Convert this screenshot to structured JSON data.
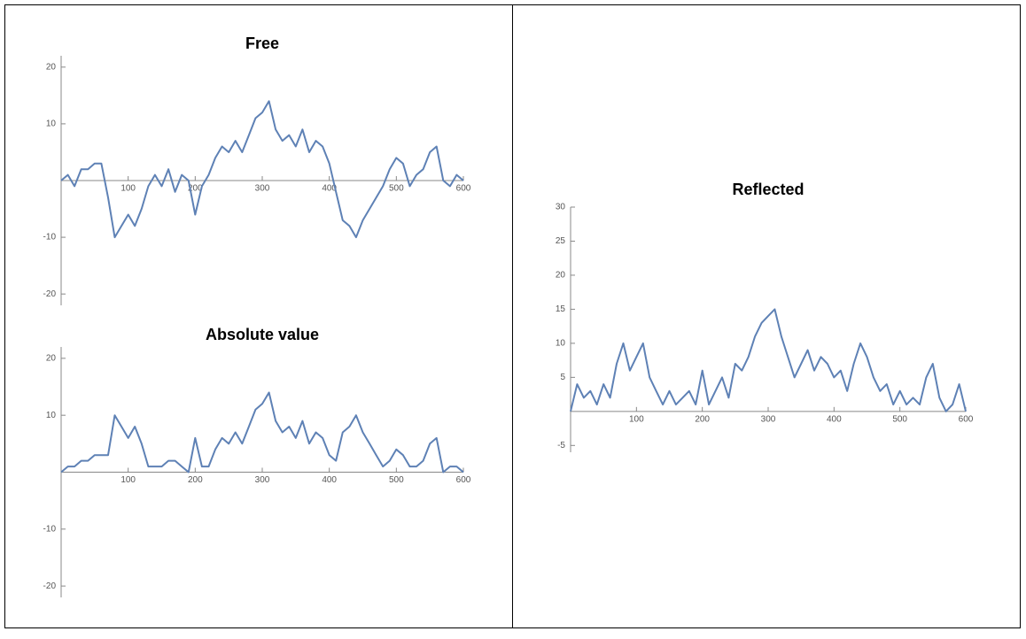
{
  "chart_data": [
    {
      "type": "line",
      "title": "Free",
      "color": "#5e81b5",
      "x": [
        0,
        10,
        20,
        30,
        40,
        50,
        60,
        70,
        80,
        90,
        100,
        110,
        120,
        130,
        140,
        150,
        160,
        170,
        180,
        190,
        200,
        210,
        220,
        230,
        240,
        250,
        260,
        270,
        280,
        290,
        300,
        310,
        320,
        330,
        340,
        350,
        360,
        370,
        380,
        390,
        400,
        410,
        420,
        430,
        440,
        450,
        460,
        470,
        480,
        490,
        500,
        510,
        520,
        530,
        540,
        550,
        560,
        570,
        580,
        590,
        600
      ],
      "values": [
        0,
        1,
        -1,
        2,
        2,
        3,
        3,
        -3,
        -10,
        -8,
        -6,
        -8,
        -5,
        -1,
        1,
        -1,
        2,
        -2,
        1,
        0,
        -6,
        -1,
        1,
        4,
        6,
        5,
        7,
        5,
        8,
        11,
        12,
        14,
        9,
        7,
        8,
        6,
        9,
        5,
        7,
        6,
        3,
        -2,
        -7,
        -8,
        -10,
        -7,
        -5,
        -3,
        -1,
        2,
        4,
        3,
        -1,
        1,
        2,
        5,
        6,
        0,
        -1,
        1,
        0
      ],
      "xlim": [
        0,
        600
      ],
      "xticks": [
        100,
        200,
        300,
        400,
        500,
        600
      ],
      "ylim": [
        -22,
        22
      ],
      "yticks": [
        -20,
        -10,
        10,
        20
      ]
    },
    {
      "type": "line",
      "title": "Absolute value",
      "color": "#5e81b5",
      "x": [
        0,
        10,
        20,
        30,
        40,
        50,
        60,
        70,
        80,
        90,
        100,
        110,
        120,
        130,
        140,
        150,
        160,
        170,
        180,
        190,
        200,
        210,
        220,
        230,
        240,
        250,
        260,
        270,
        280,
        290,
        300,
        310,
        320,
        330,
        340,
        350,
        360,
        370,
        380,
        390,
        400,
        410,
        420,
        430,
        440,
        450,
        460,
        470,
        480,
        490,
        500,
        510,
        520,
        530,
        540,
        550,
        560,
        570,
        580,
        590,
        600
      ],
      "values": [
        0,
        1,
        1,
        2,
        2,
        3,
        3,
        3,
        10,
        8,
        6,
        8,
        5,
        1,
        1,
        1,
        2,
        2,
        1,
        0,
        6,
        1,
        1,
        4,
        6,
        5,
        7,
        5,
        8,
        11,
        12,
        14,
        9,
        7,
        8,
        6,
        9,
        5,
        7,
        6,
        3,
        2,
        7,
        8,
        10,
        7,
        5,
        3,
        1,
        2,
        4,
        3,
        1,
        1,
        2,
        5,
        6,
        0,
        1,
        1,
        0
      ],
      "xlim": [
        0,
        600
      ],
      "xticks": [
        100,
        200,
        300,
        400,
        500,
        600
      ],
      "ylim": [
        -22,
        22
      ],
      "yticks": [
        -20,
        -10,
        10,
        20
      ]
    },
    {
      "type": "line",
      "title": "Reflected",
      "color": "#5e81b5",
      "x": [
        0,
        10,
        20,
        30,
        40,
        50,
        60,
        70,
        80,
        90,
        100,
        110,
        120,
        130,
        140,
        150,
        160,
        170,
        180,
        190,
        200,
        210,
        220,
        230,
        240,
        250,
        260,
        270,
        280,
        290,
        300,
        310,
        320,
        330,
        340,
        350,
        360,
        370,
        380,
        390,
        400,
        410,
        420,
        430,
        440,
        450,
        460,
        470,
        480,
        490,
        500,
        510,
        520,
        530,
        540,
        550,
        560,
        570,
        580,
        590,
        600
      ],
      "values": [
        0,
        4,
        2,
        3,
        1,
        4,
        2,
        7,
        10,
        6,
        8,
        10,
        5,
        3,
        1,
        3,
        1,
        2,
        3,
        1,
        6,
        1,
        3,
        5,
        2,
        7,
        6,
        8,
        11,
        13,
        14,
        15,
        11,
        8,
        5,
        7,
        9,
        6,
        8,
        7,
        5,
        6,
        3,
        7,
        10,
        8,
        5,
        3,
        4,
        1,
        3,
        1,
        2,
        1,
        5,
        7,
        2,
        0,
        1,
        4,
        0
      ],
      "xlim": [
        0,
        600
      ],
      "xticks": [
        100,
        200,
        300,
        400,
        500,
        600
      ],
      "ylim": [
        -6,
        30
      ],
      "yticks": [
        -5,
        5,
        10,
        15,
        20,
        25,
        30
      ]
    }
  ]
}
